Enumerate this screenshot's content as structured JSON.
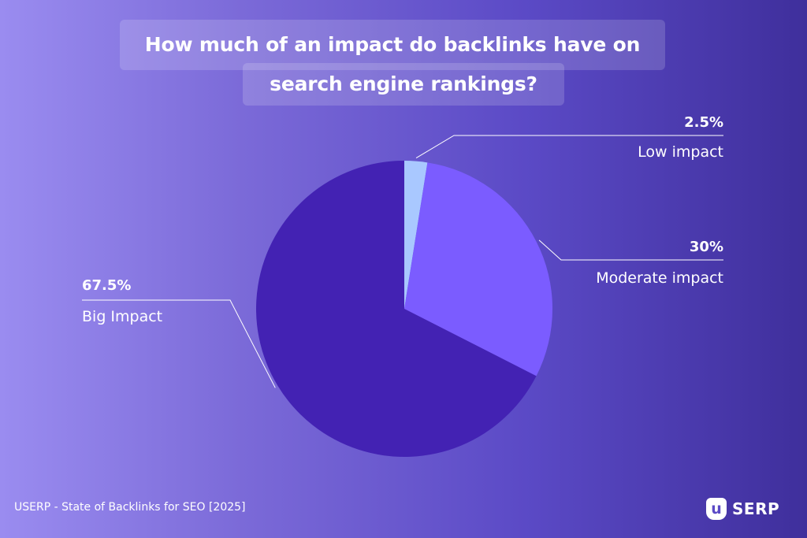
{
  "title_lines": [
    "How much of an impact do backlinks have on",
    "search engine rankings?"
  ],
  "chart_data": {
    "type": "pie",
    "title": "How much of an impact do backlinks have on search engine rankings?",
    "slices": [
      {
        "label": "Low impact",
        "value": 2.5,
        "value_label": "2.5%",
        "color": "#a9c8ff"
      },
      {
        "label": "Moderate impact",
        "value": 30,
        "value_label": "30%",
        "color": "#7b5cff"
      },
      {
        "label": "Big Impact",
        "value": 67.5,
        "value_label": "67.5%",
        "color": "#4322b3"
      }
    ],
    "start": "12 o'clock",
    "direction": "clockwise"
  },
  "footer": {
    "source": "USERP - State of Backlinks for SEO [2025]",
    "brand_mark": "u",
    "brand_name": "SERP"
  }
}
